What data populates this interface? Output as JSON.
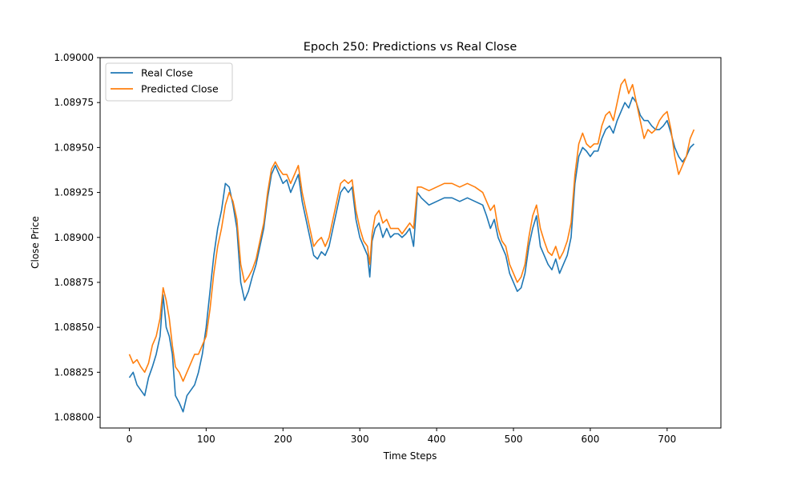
{
  "chart_data": {
    "type": "line",
    "title": "Epoch 250: Predictions vs Real Close",
    "xlabel": "Time Steps",
    "ylabel": "Close Price",
    "xlim": [
      -38,
      770
    ],
    "ylim": [
      1.08794,
      1.09
    ],
    "x_ticks": [
      0,
      100,
      200,
      300,
      400,
      500,
      600,
      700
    ],
    "y_ticks": [
      1.088,
      1.08825,
      1.0885,
      1.08875,
      1.089,
      1.08925,
      1.0895,
      1.08975,
      1.09
    ],
    "y_tick_labels": [
      "1.08800",
      "1.08825",
      "1.08850",
      "1.08875",
      "1.08900",
      "1.08925",
      "1.08950",
      "1.08975",
      "1.09000"
    ],
    "grid": false,
    "legend": "top-left",
    "series": [
      {
        "name": "Real Close",
        "color": "#1f77b4",
        "points": [
          [
            0,
            1.08822
          ],
          [
            5,
            1.08825
          ],
          [
            10,
            1.08818
          ],
          [
            15,
            1.08815
          ],
          [
            20,
            1.08812
          ],
          [
            25,
            1.08822
          ],
          [
            30,
            1.08828
          ],
          [
            35,
            1.08835
          ],
          [
            40,
            1.08845
          ],
          [
            44,
            1.08868
          ],
          [
            48,
            1.0885
          ],
          [
            52,
            1.08845
          ],
          [
            56,
            1.08835
          ],
          [
            60,
            1.08812
          ],
          [
            65,
            1.08808
          ],
          [
            70,
            1.08803
          ],
          [
            75,
            1.08812
          ],
          [
            80,
            1.08815
          ],
          [
            85,
            1.08818
          ],
          [
            90,
            1.08825
          ],
          [
            95,
            1.08835
          ],
          [
            100,
            1.0885
          ],
          [
            105,
            1.0887
          ],
          [
            110,
            1.0889
          ],
          [
            115,
            1.08905
          ],
          [
            120,
            1.08915
          ],
          [
            125,
            1.0893
          ],
          [
            130,
            1.08928
          ],
          [
            135,
            1.08918
          ],
          [
            140,
            1.08905
          ],
          [
            145,
            1.08875
          ],
          [
            150,
            1.08865
          ],
          [
            155,
            1.0887
          ],
          [
            160,
            1.08878
          ],
          [
            165,
            1.08885
          ],
          [
            170,
            1.08895
          ],
          [
            175,
            1.08905
          ],
          [
            180,
            1.08922
          ],
          [
            185,
            1.08935
          ],
          [
            190,
            1.0894
          ],
          [
            195,
            1.08935
          ],
          [
            200,
            1.0893
          ],
          [
            205,
            1.08932
          ],
          [
            210,
            1.08925
          ],
          [
            215,
            1.0893
          ],
          [
            220,
            1.08935
          ],
          [
            225,
            1.0892
          ],
          [
            230,
            1.0891
          ],
          [
            235,
            1.089
          ],
          [
            240,
            1.0889
          ],
          [
            245,
            1.08888
          ],
          [
            250,
            1.08892
          ],
          [
            255,
            1.0889
          ],
          [
            260,
            1.08895
          ],
          [
            265,
            1.08905
          ],
          [
            270,
            1.08915
          ],
          [
            275,
            1.08925
          ],
          [
            280,
            1.08928
          ],
          [
            285,
            1.08925
          ],
          [
            290,
            1.08928
          ],
          [
            295,
            1.0891
          ],
          [
            300,
            1.089
          ],
          [
            305,
            1.08895
          ],
          [
            310,
            1.0889
          ],
          [
            313,
            1.08878
          ],
          [
            316,
            1.08898
          ],
          [
            320,
            1.08905
          ],
          [
            325,
            1.08908
          ],
          [
            330,
            1.089
          ],
          [
            335,
            1.08905
          ],
          [
            340,
            1.089
          ],
          [
            345,
            1.08902
          ],
          [
            350,
            1.08902
          ],
          [
            355,
            1.089
          ],
          [
            360,
            1.08902
          ],
          [
            365,
            1.08905
          ],
          [
            370,
            1.08895
          ],
          [
            375,
            1.08925
          ],
          [
            380,
            1.08922
          ],
          [
            390,
            1.08918
          ],
          [
            400,
            1.0892
          ],
          [
            410,
            1.08922
          ],
          [
            420,
            1.08922
          ],
          [
            430,
            1.0892
          ],
          [
            440,
            1.08922
          ],
          [
            450,
            1.0892
          ],
          [
            460,
            1.08918
          ],
          [
            465,
            1.08912
          ],
          [
            470,
            1.08905
          ],
          [
            475,
            1.0891
          ],
          [
            480,
            1.089
          ],
          [
            485,
            1.08895
          ],
          [
            490,
            1.0889
          ],
          [
            495,
            1.0888
          ],
          [
            500,
            1.08875
          ],
          [
            505,
            1.0887
          ],
          [
            510,
            1.08872
          ],
          [
            515,
            1.0888
          ],
          [
            520,
            1.08895
          ],
          [
            525,
            1.08905
          ],
          [
            530,
            1.08912
          ],
          [
            535,
            1.08895
          ],
          [
            540,
            1.0889
          ],
          [
            545,
            1.08885
          ],
          [
            550,
            1.08882
          ],
          [
            555,
            1.08888
          ],
          [
            560,
            1.0888
          ],
          [
            565,
            1.08885
          ],
          [
            570,
            1.0889
          ],
          [
            575,
            1.089
          ],
          [
            580,
            1.0893
          ],
          [
            585,
            1.08945
          ],
          [
            590,
            1.0895
          ],
          [
            595,
            1.08948
          ],
          [
            600,
            1.08945
          ],
          [
            605,
            1.08948
          ],
          [
            610,
            1.08948
          ],
          [
            615,
            1.08955
          ],
          [
            620,
            1.0896
          ],
          [
            625,
            1.08962
          ],
          [
            630,
            1.08958
          ],
          [
            635,
            1.08965
          ],
          [
            640,
            1.0897
          ],
          [
            645,
            1.08975
          ],
          [
            650,
            1.08972
          ],
          [
            655,
            1.08978
          ],
          [
            660,
            1.08975
          ],
          [
            665,
            1.08968
          ],
          [
            670,
            1.08965
          ],
          [
            675,
            1.08965
          ],
          [
            680,
            1.08962
          ],
          [
            685,
            1.0896
          ],
          [
            690,
            1.0896
          ],
          [
            695,
            1.08962
          ],
          [
            700,
            1.08965
          ],
          [
            705,
            1.08958
          ],
          [
            710,
            1.0895
          ],
          [
            715,
            1.08945
          ],
          [
            720,
            1.08942
          ],
          [
            725,
            1.08945
          ],
          [
            730,
            1.0895
          ],
          [
            735,
            1.08952
          ]
        ]
      },
      {
        "name": "Predicted Close",
        "color": "#ff7f0e",
        "points": [
          [
            0,
            1.08835
          ],
          [
            5,
            1.0883
          ],
          [
            10,
            1.08832
          ],
          [
            15,
            1.08828
          ],
          [
            20,
            1.08825
          ],
          [
            25,
            1.0883
          ],
          [
            30,
            1.0884
          ],
          [
            35,
            1.08845
          ],
          [
            40,
            1.08855
          ],
          [
            44,
            1.08872
          ],
          [
            48,
            1.08865
          ],
          [
            52,
            1.08855
          ],
          [
            56,
            1.0884
          ],
          [
            60,
            1.08828
          ],
          [
            65,
            1.08825
          ],
          [
            70,
            1.0882
          ],
          [
            75,
            1.08825
          ],
          [
            80,
            1.0883
          ],
          [
            85,
            1.08835
          ],
          [
            90,
            1.08835
          ],
          [
            95,
            1.0884
          ],
          [
            100,
            1.08845
          ],
          [
            105,
            1.0886
          ],
          [
            110,
            1.0888
          ],
          [
            115,
            1.08895
          ],
          [
            120,
            1.08905
          ],
          [
            125,
            1.08918
          ],
          [
            130,
            1.08925
          ],
          [
            135,
            1.0892
          ],
          [
            140,
            1.0891
          ],
          [
            145,
            1.08885
          ],
          [
            150,
            1.08875
          ],
          [
            155,
            1.08878
          ],
          [
            160,
            1.08882
          ],
          [
            165,
            1.08888
          ],
          [
            170,
            1.08898
          ],
          [
            175,
            1.08908
          ],
          [
            180,
            1.08925
          ],
          [
            185,
            1.08938
          ],
          [
            190,
            1.08942
          ],
          [
            195,
            1.08938
          ],
          [
            200,
            1.08935
          ],
          [
            205,
            1.08935
          ],
          [
            210,
            1.0893
          ],
          [
            215,
            1.08935
          ],
          [
            220,
            1.0894
          ],
          [
            225,
            1.08925
          ],
          [
            230,
            1.08915
          ],
          [
            235,
            1.08905
          ],
          [
            240,
            1.08895
          ],
          [
            245,
            1.08898
          ],
          [
            250,
            1.089
          ],
          [
            255,
            1.08895
          ],
          [
            260,
            1.089
          ],
          [
            265,
            1.0891
          ],
          [
            270,
            1.0892
          ],
          [
            275,
            1.0893
          ],
          [
            280,
            1.08932
          ],
          [
            285,
            1.0893
          ],
          [
            290,
            1.08932
          ],
          [
            295,
            1.08915
          ],
          [
            300,
            1.08905
          ],
          [
            305,
            1.08898
          ],
          [
            310,
            1.08895
          ],
          [
            313,
            1.08885
          ],
          [
            316,
            1.08902
          ],
          [
            320,
            1.08912
          ],
          [
            325,
            1.08915
          ],
          [
            330,
            1.08908
          ],
          [
            335,
            1.0891
          ],
          [
            340,
            1.08905
          ],
          [
            345,
            1.08905
          ],
          [
            350,
            1.08905
          ],
          [
            355,
            1.08902
          ],
          [
            360,
            1.08905
          ],
          [
            365,
            1.08908
          ],
          [
            370,
            1.08905
          ],
          [
            375,
            1.08928
          ],
          [
            380,
            1.08928
          ],
          [
            390,
            1.08926
          ],
          [
            400,
            1.08928
          ],
          [
            410,
            1.0893
          ],
          [
            420,
            1.0893
          ],
          [
            430,
            1.08928
          ],
          [
            440,
            1.0893
          ],
          [
            450,
            1.08928
          ],
          [
            460,
            1.08925
          ],
          [
            465,
            1.0892
          ],
          [
            470,
            1.08915
          ],
          [
            475,
            1.08918
          ],
          [
            480,
            1.08905
          ],
          [
            485,
            1.08898
          ],
          [
            490,
            1.08895
          ],
          [
            495,
            1.08885
          ],
          [
            500,
            1.0888
          ],
          [
            505,
            1.08875
          ],
          [
            510,
            1.08878
          ],
          [
            515,
            1.08885
          ],
          [
            520,
            1.089
          ],
          [
            525,
            1.08912
          ],
          [
            530,
            1.08918
          ],
          [
            535,
            1.08905
          ],
          [
            540,
            1.08898
          ],
          [
            545,
            1.08892
          ],
          [
            550,
            1.0889
          ],
          [
            555,
            1.08895
          ],
          [
            560,
            1.08888
          ],
          [
            565,
            1.08892
          ],
          [
            570,
            1.08898
          ],
          [
            575,
            1.08908
          ],
          [
            580,
            1.08935
          ],
          [
            585,
            1.08952
          ],
          [
            590,
            1.08958
          ],
          [
            595,
            1.08952
          ],
          [
            600,
            1.0895
          ],
          [
            605,
            1.08952
          ],
          [
            610,
            1.08952
          ],
          [
            615,
            1.08962
          ],
          [
            620,
            1.08968
          ],
          [
            625,
            1.0897
          ],
          [
            630,
            1.08965
          ],
          [
            635,
            1.08975
          ],
          [
            640,
            1.08985
          ],
          [
            645,
            1.08988
          ],
          [
            650,
            1.0898
          ],
          [
            655,
            1.08985
          ],
          [
            660,
            1.08975
          ],
          [
            665,
            1.08965
          ],
          [
            670,
            1.08955
          ],
          [
            675,
            1.0896
          ],
          [
            680,
            1.08958
          ],
          [
            685,
            1.0896
          ],
          [
            690,
            1.08965
          ],
          [
            695,
            1.08968
          ],
          [
            700,
            1.0897
          ],
          [
            705,
            1.0896
          ],
          [
            710,
            1.08945
          ],
          [
            715,
            1.08935
          ],
          [
            720,
            1.0894
          ],
          [
            725,
            1.08945
          ],
          [
            730,
            1.08955
          ],
          [
            735,
            1.0896
          ]
        ]
      }
    ]
  }
}
